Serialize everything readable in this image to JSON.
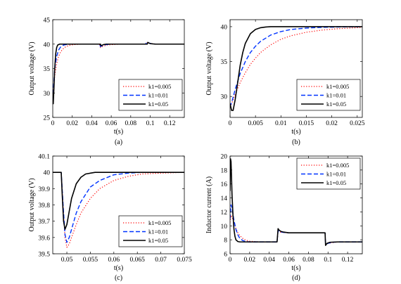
{
  "chart_data": [
    {
      "panel": "(a)",
      "type": "line",
      "xlabel": "t(s)",
      "ylabel": "Output voltage (V)",
      "xlim": [
        0,
        0.135
      ],
      "ylim": [
        25,
        45
      ],
      "xticks": [
        0,
        0.02,
        0.04,
        0.06,
        0.08,
        0.1,
        0.12
      ],
      "xtick_labels": [
        "0",
        "0.02",
        "0.04",
        "0.06",
        "0.08",
        "0.1",
        "0.12"
      ],
      "yticks": [
        25,
        30,
        35,
        40,
        45
      ],
      "ytick_labels": [
        "25",
        "30",
        "35",
        "40",
        "45"
      ],
      "legend_position": "bottom-right",
      "series": [
        {
          "name": "k1=0.005",
          "color": "#ff0000",
          "style": "dotted",
          "x": [
            0,
            0.002,
            0.004,
            0.006,
            0.008,
            0.01,
            0.012,
            0.015,
            0.018,
            0.022,
            0.026,
            0.03,
            0.035,
            0.04,
            0.045,
            0.048,
            0.049,
            0.051,
            0.055,
            0.06,
            0.07,
            0.08,
            0.09,
            0.095,
            0.097,
            0.099,
            0.102,
            0.106,
            0.11,
            0.12,
            0.135
          ],
          "y": [
            29,
            33.5,
            36,
            37.5,
            38.4,
            38.9,
            39.3,
            39.6,
            39.8,
            39.9,
            39.95,
            40,
            40,
            40,
            40,
            40,
            39.3,
            39.5,
            39.8,
            39.9,
            40,
            40,
            40,
            40,
            40.3,
            40.2,
            40.1,
            40,
            40,
            40,
            40
          ]
        },
        {
          "name": "k1=0.01",
          "color": "#0033ff",
          "style": "dashed",
          "x": [
            0,
            0.002,
            0.004,
            0.006,
            0.008,
            0.01,
            0.012,
            0.015,
            0.018,
            0.022,
            0.026,
            0.03,
            0.035,
            0.04,
            0.045,
            0.048,
            0.049,
            0.051,
            0.055,
            0.06,
            0.07,
            0.08,
            0.09,
            0.095,
            0.097,
            0.099,
            0.102,
            0.106,
            0.11,
            0.12,
            0.135
          ],
          "y": [
            28.5,
            35,
            37.5,
            38.8,
            39.4,
            39.7,
            39.85,
            39.95,
            40,
            40,
            40,
            40,
            40,
            40,
            40,
            40,
            39.5,
            39.7,
            39.9,
            40,
            40,
            40,
            40,
            40,
            40.4,
            40.2,
            40.05,
            40,
            40,
            40,
            40
          ]
        },
        {
          "name": "k1=0.05",
          "color": "#000000",
          "style": "solid",
          "x": [
            0,
            0.0005,
            0.001,
            0.002,
            0.003,
            0.004,
            0.005,
            0.007,
            0.01,
            0.015,
            0.02,
            0.03,
            0.04,
            0.045,
            0.048,
            0.049,
            0.0495,
            0.05,
            0.052,
            0.055,
            0.06,
            0.07,
            0.08,
            0.09,
            0.095,
            0.097,
            0.0975,
            0.098,
            0.1,
            0.105,
            0.11,
            0.12,
            0.135
          ],
          "y": [
            28,
            27.8,
            30,
            35,
            38,
            39.3,
            39.8,
            40,
            40,
            40,
            40,
            40,
            40,
            40,
            40,
            40,
            39.65,
            39.7,
            39.9,
            40,
            40,
            40,
            40,
            40,
            40,
            40,
            40.35,
            40.3,
            40.1,
            40,
            40,
            40,
            40
          ]
        }
      ],
      "legend": [
        "k1=0.005",
        "k1=0.01",
        "k1=0.05"
      ],
      "grid": false
    },
    {
      "panel": "(b)",
      "type": "line",
      "xlabel": "t(s)",
      "ylabel": "Output voltage (V)",
      "xlim": [
        0,
        0.026
      ],
      "ylim": [
        27,
        41
      ],
      "xticks": [
        0,
        0.005,
        0.01,
        0.015,
        0.02,
        0.025
      ],
      "xtick_labels": [
        "0",
        "0.005",
        "0.01",
        "0.015",
        "0.02",
        "0.025"
      ],
      "yticks": [
        30,
        35,
        40
      ],
      "ytick_labels": [
        "30",
        "35",
        "40"
      ],
      "legend_position": "bottom-right",
      "series": [
        {
          "name": "k1=0.005",
          "color": "#ff0000",
          "style": "dotted",
          "x": [
            0,
            0.0005,
            0.001,
            0.002,
            0.003,
            0.004,
            0.005,
            0.006,
            0.008,
            0.01,
            0.012,
            0.015,
            0.018,
            0.021,
            0.025,
            0.026
          ],
          "y": [
            28.5,
            29.3,
            30.3,
            32,
            33.4,
            34.6,
            35.5,
            36.3,
            37.4,
            38.2,
            38.7,
            39.2,
            39.5,
            39.7,
            39.85,
            39.9
          ]
        },
        {
          "name": "k1=0.01",
          "color": "#0033ff",
          "style": "dashed",
          "x": [
            0,
            0.0005,
            0.001,
            0.002,
            0.003,
            0.004,
            0.005,
            0.006,
            0.008,
            0.01,
            0.012,
            0.015,
            0.018,
            0.021,
            0.026
          ],
          "y": [
            28.5,
            29.6,
            31,
            33.3,
            35,
            36.3,
            37.2,
            37.9,
            38.8,
            39.3,
            39.6,
            39.8,
            39.9,
            39.95,
            40
          ]
        },
        {
          "name": "k1=0.05",
          "color": "#000000",
          "style": "solid",
          "x": [
            0,
            0.0003,
            0.0006,
            0.001,
            0.0015,
            0.002,
            0.0025,
            0.003,
            0.004,
            0.005,
            0.006,
            0.007,
            0.008,
            0.01,
            0.015,
            0.02,
            0.026
          ],
          "y": [
            29,
            28,
            28,
            29.5,
            32,
            34.5,
            36.3,
            37.6,
            39,
            39.6,
            39.85,
            39.95,
            40,
            40,
            40,
            40,
            40
          ]
        }
      ],
      "legend": [
        "k1=0.005",
        "k1=0.01",
        "k1=0.05"
      ],
      "grid": false
    },
    {
      "panel": "(c)",
      "type": "line",
      "xlabel": "t(s)",
      "ylabel": "Output voltage (V)",
      "xlim": [
        0.047,
        0.075
      ],
      "ylim": [
        39.5,
        40.1
      ],
      "xticks": [
        0.05,
        0.055,
        0.06,
        0.065,
        0.07,
        0.075
      ],
      "xtick_labels": [
        "0.05",
        "0.055",
        "0.06",
        "0.065",
        "0.07",
        "0.075"
      ],
      "yticks": [
        39.5,
        39.6,
        39.7,
        39.8,
        39.9,
        40,
        40.1
      ],
      "ytick_labels": [
        "39.5",
        "39.6",
        "39.7",
        "39.8",
        "39.9",
        "40",
        "40.1"
      ],
      "legend_position": "bottom-right",
      "series": [
        {
          "name": "k1=0.005",
          "color": "#ff0000",
          "style": "dotted",
          "x": [
            0.047,
            0.0488,
            0.0492,
            0.0496,
            0.05,
            0.0505,
            0.051,
            0.052,
            0.053,
            0.055,
            0.057,
            0.06,
            0.063,
            0.066,
            0.07,
            0.075
          ],
          "y": [
            40,
            40,
            39.8,
            39.6,
            39.54,
            39.56,
            39.6,
            39.68,
            39.75,
            39.84,
            39.9,
            39.95,
            39.975,
            39.99,
            39.995,
            40
          ]
        },
        {
          "name": "k1=0.01",
          "color": "#0033ff",
          "style": "dashed",
          "x": [
            0.047,
            0.0488,
            0.0492,
            0.0496,
            0.05,
            0.0505,
            0.051,
            0.052,
            0.053,
            0.055,
            0.057,
            0.06,
            0.063,
            0.066,
            0.07,
            0.075
          ],
          "y": [
            40,
            40,
            39.8,
            39.62,
            39.57,
            39.6,
            39.65,
            39.75,
            39.82,
            39.91,
            39.95,
            39.985,
            39.995,
            40,
            40,
            40
          ]
        },
        {
          "name": "k1=0.05",
          "color": "#000000",
          "style": "solid",
          "x": [
            0.047,
            0.0488,
            0.049,
            0.0493,
            0.0496,
            0.05,
            0.0505,
            0.051,
            0.052,
            0.053,
            0.054,
            0.055,
            0.056,
            0.058,
            0.06,
            0.065,
            0.075
          ],
          "y": [
            40,
            40,
            39.87,
            39.7,
            39.65,
            39.68,
            39.76,
            39.84,
            39.93,
            39.97,
            39.99,
            39.995,
            40,
            40,
            40,
            40,
            40
          ]
        }
      ],
      "legend": [
        "k1=0.005",
        "k1=0.01",
        "k1=0.05"
      ],
      "grid": false
    },
    {
      "panel": "(d)",
      "type": "line",
      "xlabel": "t(s)",
      "ylabel": "Inductor current (A)",
      "xlim": [
        0,
        0.135
      ],
      "ylim": [
        6,
        20
      ],
      "xticks": [
        0,
        0.02,
        0.04,
        0.06,
        0.08,
        0.1,
        0.12
      ],
      "xtick_labels": [
        "0",
        "0.02",
        "0.04",
        "0.06",
        "0.08",
        "0.1",
        "0.12"
      ],
      "yticks": [
        6,
        8,
        10,
        12,
        14,
        16,
        18,
        20
      ],
      "ytick_labels": [
        "6",
        "8",
        "10",
        "12",
        "14",
        "16",
        "18",
        "20"
      ],
      "legend_position": "top-right",
      "series": [
        {
          "name": "k1=0.005",
          "color": "#ff0000",
          "style": "dotted",
          "x": [
            0,
            0.001,
            0.002,
            0.004,
            0.006,
            0.008,
            0.01,
            0.013,
            0.016,
            0.02,
            0.025,
            0.03,
            0.048,
            0.049,
            0.051,
            0.055,
            0.06,
            0.07,
            0.09,
            0.097,
            0.0975,
            0.1,
            0.105,
            0.11,
            0.135
          ],
          "y": [
            10.5,
            11.5,
            11.3,
            10.4,
            9.6,
            9,
            8.6,
            8.2,
            7.95,
            7.8,
            7.75,
            7.7,
            7.7,
            9.2,
            9.1,
            9.05,
            9,
            9,
            9,
            9,
            7.4,
            7.5,
            7.6,
            7.7,
            7.7
          ]
        },
        {
          "name": "k1=0.01",
          "color": "#0033ff",
          "style": "dashed",
          "x": [
            0,
            0.001,
            0.002,
            0.004,
            0.006,
            0.008,
            0.01,
            0.013,
            0.016,
            0.02,
            0.025,
            0.03,
            0.048,
            0.049,
            0.051,
            0.055,
            0.06,
            0.07,
            0.09,
            0.097,
            0.0975,
            0.1,
            0.105,
            0.11,
            0.135
          ],
          "y": [
            11,
            13,
            12.5,
            10.8,
            9.5,
            8.7,
            8.2,
            7.9,
            7.75,
            7.7,
            7.7,
            7.7,
            7.7,
            9.3,
            9.15,
            9.05,
            9,
            9,
            9,
            9,
            7.35,
            7.5,
            7.65,
            7.7,
            7.7
          ]
        },
        {
          "name": "k1=0.05",
          "color": "#000000",
          "style": "solid",
          "x": [
            0,
            0.0005,
            0.001,
            0.0015,
            0.002,
            0.003,
            0.004,
            0.005,
            0.006,
            0.008,
            0.01,
            0.015,
            0.02,
            0.03,
            0.048,
            0.049,
            0.05,
            0.052,
            0.055,
            0.06,
            0.09,
            0.097,
            0.0975,
            0.099,
            0.102,
            0.11,
            0.135
          ],
          "y": [
            15,
            19.6,
            19.2,
            17,
            14.5,
            11.5,
            9.5,
            8.5,
            8,
            7.75,
            7.7,
            7.7,
            7.7,
            7.7,
            7.7,
            9.6,
            9.4,
            9.2,
            9.1,
            9,
            9,
            9,
            7.2,
            7.5,
            7.65,
            7.7,
            7.7
          ]
        }
      ],
      "legend": [
        "k1=0.005",
        "k1=0.01",
        "k1=0.05"
      ],
      "grid": false
    }
  ]
}
